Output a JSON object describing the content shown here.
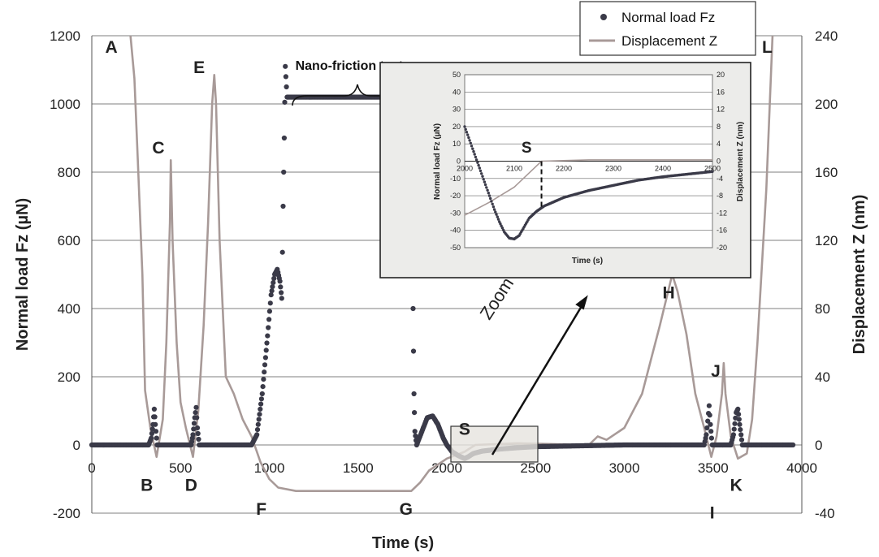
{
  "chart_data": [
    {
      "type": "scatter",
      "xlabel": "Time (s)",
      "ylabel": "Normal load Fz (µN)",
      "y2label": "Displacement Z (nm)",
      "xlim": [
        0,
        4000
      ],
      "ylim": [
        -200,
        1200
      ],
      "y2lim": [
        -40,
        240
      ],
      "x_ticks": [
        "0",
        "500",
        "1000",
        "1500",
        "2000",
        "2500",
        "3000",
        "3500",
        "4000"
      ],
      "y_ticks": [
        "-200",
        "0",
        "200",
        "400",
        "600",
        "800",
        "1000",
        "1200"
      ],
      "y2_ticks": [
        "-40",
        "0",
        "40",
        "80",
        "120",
        "160",
        "200",
        "240"
      ],
      "grid": "horizontal",
      "legend": "top-right",
      "series": [
        {
          "name": "Normal load Fz",
          "axis": "left",
          "marker": "dot",
          "color": "#3a3a48",
          "points": [
            [
              0,
              0
            ],
            [
              320,
              0
            ],
            [
              335,
              20
            ],
            [
              345,
              60
            ],
            [
              352,
              105
            ],
            [
              358,
              60
            ],
            [
              368,
              0
            ],
            [
              560,
              0
            ],
            [
              570,
              30
            ],
            [
              580,
              80
            ],
            [
              588,
              110
            ],
            [
              595,
              50
            ],
            [
              605,
              0
            ],
            [
              900,
              0
            ],
            [
              930,
              30
            ],
            [
              960,
              150
            ],
            [
              990,
              320
            ],
            [
              1010,
              440
            ],
            [
              1030,
              500
            ],
            [
              1045,
              515
            ],
            [
              1060,
              480
            ],
            [
              1070,
              430
            ],
            [
              1078,
              700
            ],
            [
              1084,
              900
            ],
            [
              1090,
              1110
            ],
            [
              1100,
              1020
            ],
            [
              1110,
              1020
            ],
            [
              1180,
              1020
            ],
            [
              1700,
              1020
            ],
            [
              1770,
              1020
            ],
            [
              1790,
              1000
            ],
            [
              1800,
              960
            ],
            [
              1805,
              700
            ],
            [
              1810,
              400
            ],
            [
              1815,
              150
            ],
            [
              1820,
              40
            ],
            [
              1830,
              0
            ],
            [
              1860,
              40
            ],
            [
              1890,
              80
            ],
            [
              1920,
              85
            ],
            [
              1950,
              60
            ],
            [
              1980,
              20
            ],
            [
              2000,
              0
            ],
            [
              2030,
              -20
            ],
            [
              2060,
              -30
            ],
            [
              2100,
              -40
            ],
            [
              2120,
              -35
            ],
            [
              2150,
              -25
            ],
            [
              2200,
              -18
            ],
            [
              2300,
              -12
            ],
            [
              2400,
              -8
            ],
            [
              2500,
              -5
            ],
            [
              2800,
              -2
            ],
            [
              3000,
              0
            ],
            [
              3450,
              0
            ],
            [
              3462,
              30
            ],
            [
              3470,
              70
            ],
            [
              3478,
              115
            ],
            [
              3485,
              60
            ],
            [
              3495,
              0
            ],
            [
              3600,
              0
            ],
            [
              3615,
              30
            ],
            [
              3630,
              95
            ],
            [
              3640,
              105
            ],
            [
              3650,
              60
            ],
            [
              3665,
              0
            ],
            [
              3700,
              0
            ],
            [
              3950,
              0
            ]
          ]
        },
        {
          "name": "Displacement Z",
          "axis": "right",
          "type": "line",
          "color": "#a89a98",
          "points": [
            [
              218,
              240
            ],
            [
              240,
              215
            ],
            [
              260,
              165
            ],
            [
              285,
              100
            ],
            [
              300,
              32
            ],
            [
              330,
              10
            ],
            [
              365,
              -7
            ],
            [
              400,
              15
            ],
            [
              420,
              60
            ],
            [
              440,
              130
            ],
            [
              445,
              167
            ],
            [
              455,
              120
            ],
            [
              478,
              60
            ],
            [
              500,
              25
            ],
            [
              530,
              10
            ],
            [
              570,
              -7
            ],
            [
              600,
              20
            ],
            [
              630,
              70
            ],
            [
              655,
              130
            ],
            [
              678,
              200
            ],
            [
              690,
              217
            ],
            [
              700,
              200
            ],
            [
              720,
              120
            ],
            [
              755,
              40
            ],
            [
              800,
              30
            ],
            [
              850,
              15
            ],
            [
              900,
              5
            ],
            [
              950,
              -10
            ],
            [
              1000,
              -20
            ],
            [
              1050,
              -25
            ],
            [
              1150,
              -27
            ],
            [
              1800,
              -27
            ],
            [
              1850,
              -22
            ],
            [
              1900,
              -15
            ],
            [
              2000,
              -8
            ],
            [
              2100,
              -4
            ],
            [
              2160,
              0
            ],
            [
              2400,
              1
            ],
            [
              2800,
              0
            ],
            [
              2850,
              5
            ],
            [
              2900,
              3
            ],
            [
              3000,
              10
            ],
            [
              3100,
              30
            ],
            [
              3200,
              70
            ],
            [
              3270,
              100
            ],
            [
              3300,
              90
            ],
            [
              3350,
              65
            ],
            [
              3400,
              30
            ],
            [
              3450,
              10
            ],
            [
              3490,
              -7
            ],
            [
              3520,
              5
            ],
            [
              3550,
              30
            ],
            [
              3560,
              48
            ],
            [
              3570,
              30
            ],
            [
              3600,
              5
            ],
            [
              3640,
              -8
            ],
            [
              3690,
              -5
            ],
            [
              3720,
              15
            ],
            [
              3750,
              60
            ],
            [
              3800,
              150
            ],
            [
              3835,
              240
            ]
          ]
        }
      ],
      "annotations": [
        {
          "text": "A",
          "x": 110,
          "y": 1150
        },
        {
          "text": "B",
          "x": 310,
          "y": -135
        },
        {
          "text": "C",
          "x": 375,
          "y": 855
        },
        {
          "text": "D",
          "x": 560,
          "y": -135
        },
        {
          "text": "E",
          "x": 605,
          "y": 1090
        },
        {
          "text": "F",
          "x": 955,
          "y": -205
        },
        {
          "text": "G",
          "x": 1770,
          "y": -205
        },
        {
          "text": "S",
          "x": 2100,
          "y": 30
        },
        {
          "text": "H",
          "x": 3250,
          "y": 430
        },
        {
          "text": "I",
          "x": 3495,
          "y": -215
        },
        {
          "text": "J",
          "x": 3515,
          "y": 200
        },
        {
          "text": "K",
          "x": 3630,
          "y": -135
        },
        {
          "text": "L",
          "x": 3805,
          "y": 1150
        },
        {
          "text": "Nano-friction test",
          "x": 1450,
          "y": 1100
        },
        {
          "text": "Zoom",
          "x": 2310,
          "y": 420
        }
      ]
    },
    {
      "type": "scatter",
      "role": "inset",
      "xlabel": "Time (s)",
      "ylabel": "Normal load Fz (µN)",
      "y2label": "Displacement Z (nm)",
      "xlim": [
        2000,
        2500
      ],
      "ylim": [
        -50,
        50
      ],
      "y2lim": [
        -20,
        20
      ],
      "x_ticks": [
        "2000",
        "2100",
        "2200",
        "2300",
        "2400",
        "2500"
      ],
      "y_ticks": [
        "-50",
        "-40",
        "-30",
        "-20",
        "-10",
        "0",
        "10",
        "20",
        "30",
        "40",
        "50"
      ],
      "y2_ticks": [
        "-20",
        "-16",
        "-12",
        "-8",
        "-4",
        "0",
        "4",
        "8",
        "12",
        "16",
        "20"
      ],
      "series": [
        {
          "name": "Normal load Fz",
          "axis": "left",
          "marker": "dot",
          "points": [
            [
              2000,
              20
            ],
            [
              2010,
              12
            ],
            [
              2020,
              4
            ],
            [
              2030,
              -4
            ],
            [
              2040,
              -12
            ],
            [
              2050,
              -20
            ],
            [
              2060,
              -28
            ],
            [
              2070,
              -35
            ],
            [
              2080,
              -41
            ],
            [
              2090,
              -44.5
            ],
            [
              2100,
              -45
            ],
            [
              2110,
              -43
            ],
            [
              2120,
              -38
            ],
            [
              2130,
              -33
            ],
            [
              2145,
              -29
            ],
            [
              2160,
              -26
            ],
            [
              2200,
              -21
            ],
            [
              2250,
              -17
            ],
            [
              2300,
              -14
            ],
            [
              2350,
              -11
            ],
            [
              2400,
              -9
            ],
            [
              2450,
              -7.5
            ],
            [
              2500,
              -6
            ]
          ]
        },
        {
          "name": "Displacement Z",
          "axis": "right",
          "type": "line",
          "points": [
            [
              2000,
              -12.5
            ],
            [
              2050,
              -9.5
            ],
            [
              2100,
              -6
            ],
            [
              2155,
              0
            ],
            [
              2250,
              0.3
            ],
            [
              2400,
              0.3
            ],
            [
              2500,
              0.3
            ]
          ]
        }
      ],
      "annotations": [
        {
          "text": "S",
          "x": 2125,
          "y": 5
        }
      ]
    }
  ]
}
